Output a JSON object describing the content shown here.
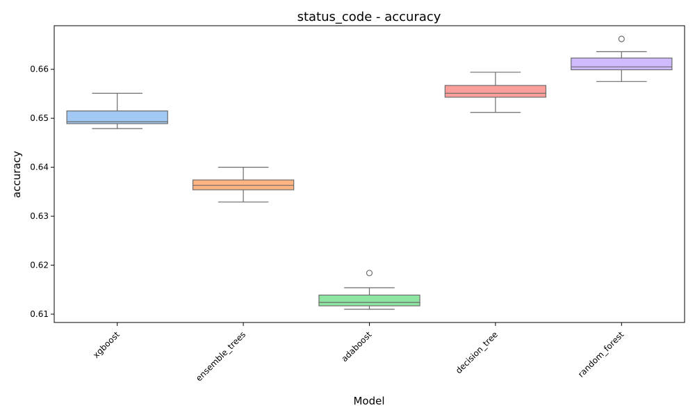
{
  "chart_data": {
    "type": "boxplot",
    "title": "status_code - accuracy",
    "xlabel": "Model",
    "ylabel": "accuracy",
    "ylim": [
      0.6083,
      0.6689
    ],
    "yticks": [
      "0.61",
      "0.62",
      "0.63",
      "0.64",
      "0.65",
      "0.66"
    ],
    "grid": false,
    "legend": "none",
    "categories": [
      "xgboost",
      "ensemble_trees",
      "adaboost",
      "decision_tree",
      "random_forest"
    ],
    "colors": [
      "#a1c9f4",
      "#ffb482",
      "#8de5a1",
      "#ff9f9b",
      "#d0bbff"
    ],
    "boxes": [
      {
        "whislo": 0.6479,
        "q1": 0.6489,
        "med": 0.6493,
        "q3": 0.6515,
        "whishi": 0.6551,
        "fliers": []
      },
      {
        "whislo": 0.6329,
        "q1": 0.6354,
        "med": 0.6363,
        "q3": 0.6374,
        "whishi": 0.64,
        "fliers": []
      },
      {
        "whislo": 0.611,
        "q1": 0.6117,
        "med": 0.6124,
        "q3": 0.6139,
        "whishi": 0.6154,
        "fliers": [
          0.6184
        ]
      },
      {
        "whislo": 0.6512,
        "q1": 0.6543,
        "med": 0.6551,
        "q3": 0.6567,
        "whishi": 0.6594,
        "fliers": []
      },
      {
        "whislo": 0.6575,
        "q1": 0.6599,
        "med": 0.6605,
        "q3": 0.6623,
        "whishi": 0.6636,
        "fliers": [
          0.6662
        ]
      }
    ]
  }
}
